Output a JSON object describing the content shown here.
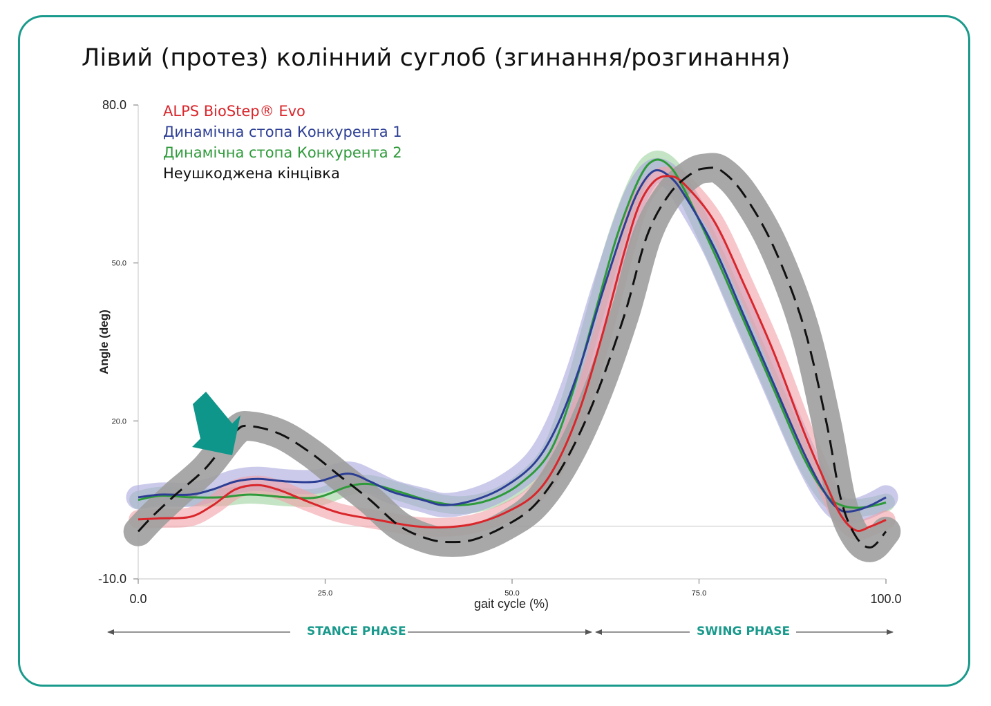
{
  "title": "Лівий (протез) колінний суглоб (згинання/розгинання)",
  "legend": [
    {
      "label": "ALPS BioStep® Evo",
      "color": "#d9262b"
    },
    {
      "label": "Динамічна стопа Конкурента 1",
      "color": "#2c3e94"
    },
    {
      "label": "Динамічна стопа Конкурента 2",
      "color": "#2e9a3a"
    },
    {
      "label": "Неушкоджена кінцівка",
      "color": "#111111"
    }
  ],
  "phases": {
    "stance": "STANCE PHASE",
    "swing": "SWING PHASE"
  },
  "colors": {
    "frame": "#1a9a8c",
    "arrow": "#0f968a"
  },
  "chart_data": {
    "type": "line",
    "xlabel": "gait cycle (%)",
    "ylabel": "Angle (deg)",
    "xlim": [
      0,
      100
    ],
    "ylim": [
      -10,
      80
    ],
    "x_ticks": [
      {
        "value": 0,
        "label": "0.0"
      },
      {
        "value": 25,
        "label": "25.0"
      },
      {
        "value": 50,
        "label": "50.0"
      },
      {
        "value": 75,
        "label": "75.0"
      },
      {
        "value": 100,
        "label": "100.0"
      }
    ],
    "y_ticks": [
      {
        "value": 80,
        "label": "80.0"
      },
      {
        "value": 50,
        "label": "50.0"
      },
      {
        "value": 20,
        "label": "20.0"
      },
      {
        "value": -10,
        "label": "-10.0"
      }
    ],
    "baseline": 0,
    "series": [
      {
        "name": "Неушкоджена кінцівка",
        "color": "#111111",
        "dash": true,
        "band": "#9e9e9e",
        "band_width": 2.8,
        "points": [
          [
            0,
            -1
          ],
          [
            2,
            2
          ],
          [
            5,
            6
          ],
          [
            9,
            11
          ],
          [
            13,
            18
          ],
          [
            15,
            19
          ],
          [
            19,
            17.5
          ],
          [
            23,
            14
          ],
          [
            27,
            9.5
          ],
          [
            31,
            5
          ],
          [
            35,
            0
          ],
          [
            39,
            -2.5
          ],
          [
            42,
            -3
          ],
          [
            45,
            -2.5
          ],
          [
            49,
            0
          ],
          [
            53,
            4
          ],
          [
            57,
            12
          ],
          [
            61,
            24
          ],
          [
            65,
            40
          ],
          [
            68,
            55
          ],
          [
            71,
            63
          ],
          [
            74,
            67
          ],
          [
            76,
            68
          ],
          [
            78,
            67.5
          ],
          [
            81,
            63
          ],
          [
            85,
            53
          ],
          [
            89,
            38
          ],
          [
            92,
            20
          ],
          [
            94,
            5
          ],
          [
            96,
            -2
          ],
          [
            98,
            -4
          ],
          [
            100,
            -1
          ]
        ]
      },
      {
        "name": "ALPS BioStep® Evo",
        "color": "#d9262b",
        "band": "#f2a0a6",
        "band_width": 1.8,
        "points": [
          [
            0,
            1.3
          ],
          [
            3,
            1.5
          ],
          [
            7,
            1.8
          ],
          [
            10,
            4
          ],
          [
            13,
            7
          ],
          [
            16,
            7.8
          ],
          [
            19,
            6.8
          ],
          [
            23,
            4.5
          ],
          [
            27,
            2.5
          ],
          [
            32,
            1.2
          ],
          [
            37,
            0
          ],
          [
            41,
            -0.2
          ],
          [
            45,
            0.5
          ],
          [
            49,
            2.5
          ],
          [
            53,
            6
          ],
          [
            56,
            12
          ],
          [
            59,
            22
          ],
          [
            62,
            36
          ],
          [
            65,
            52
          ],
          [
            67,
            61
          ],
          [
            69,
            65.5
          ],
          [
            71,
            66.5
          ],
          [
            73,
            65
          ],
          [
            77,
            58
          ],
          [
            81,
            46
          ],
          [
            85,
            33
          ],
          [
            89,
            18
          ],
          [
            92,
            8
          ],
          [
            94,
            2
          ],
          [
            96,
            -0.8
          ],
          [
            98,
            0
          ],
          [
            100,
            1.2
          ]
        ]
      },
      {
        "name": "Динамічна стопа Конкурента 1",
        "color": "#2c3e94",
        "band": "#a9a6dc",
        "band_width": 2.3,
        "points": [
          [
            0,
            5.5
          ],
          [
            3,
            6
          ],
          [
            7,
            6
          ],
          [
            10,
            7
          ],
          [
            13,
            8.5
          ],
          [
            16,
            9
          ],
          [
            20,
            8.5
          ],
          [
            24,
            8.5
          ],
          [
            28,
            10
          ],
          [
            31,
            8.5
          ],
          [
            34,
            6.5
          ],
          [
            38,
            5
          ],
          [
            41,
            4
          ],
          [
            45,
            5
          ],
          [
            49,
            7.5
          ],
          [
            53,
            12
          ],
          [
            56,
            19
          ],
          [
            59,
            30
          ],
          [
            62,
            44
          ],
          [
            65,
            57
          ],
          [
            67,
            64
          ],
          [
            69,
            67.5
          ],
          [
            71,
            66.5
          ],
          [
            73,
            63
          ],
          [
            77,
            53
          ],
          [
            81,
            40
          ],
          [
            85,
            27
          ],
          [
            89,
            14
          ],
          [
            92,
            6
          ],
          [
            94,
            3
          ],
          [
            96,
            3
          ],
          [
            98,
            4
          ],
          [
            100,
            5.5
          ]
        ]
      },
      {
        "name": "Динамічна стопа Конкурента 2",
        "color": "#2e9a3a",
        "band": "#9ed29e",
        "band_width": 1.7,
        "points": [
          [
            0,
            5
          ],
          [
            3,
            5.8
          ],
          [
            7,
            5.5
          ],
          [
            11,
            5.5
          ],
          [
            15,
            6
          ],
          [
            20,
            5.5
          ],
          [
            24,
            5.5
          ],
          [
            28,
            7.5
          ],
          [
            31,
            8
          ],
          [
            35,
            6.5
          ],
          [
            39,
            4.8
          ],
          [
            43,
            4
          ],
          [
            47,
            5
          ],
          [
            51,
            8
          ],
          [
            55,
            14
          ],
          [
            58,
            25
          ],
          [
            61,
            40
          ],
          [
            64,
            55
          ],
          [
            67,
            66
          ],
          [
            69,
            69.5
          ],
          [
            71,
            68.5
          ],
          [
            73,
            64
          ],
          [
            77,
            52
          ],
          [
            81,
            39
          ],
          [
            85,
            26
          ],
          [
            89,
            13
          ],
          [
            92,
            6
          ],
          [
            94,
            4
          ],
          [
            96,
            3.5
          ],
          [
            98,
            3.8
          ],
          [
            100,
            4.5
          ]
        ]
      }
    ]
  }
}
